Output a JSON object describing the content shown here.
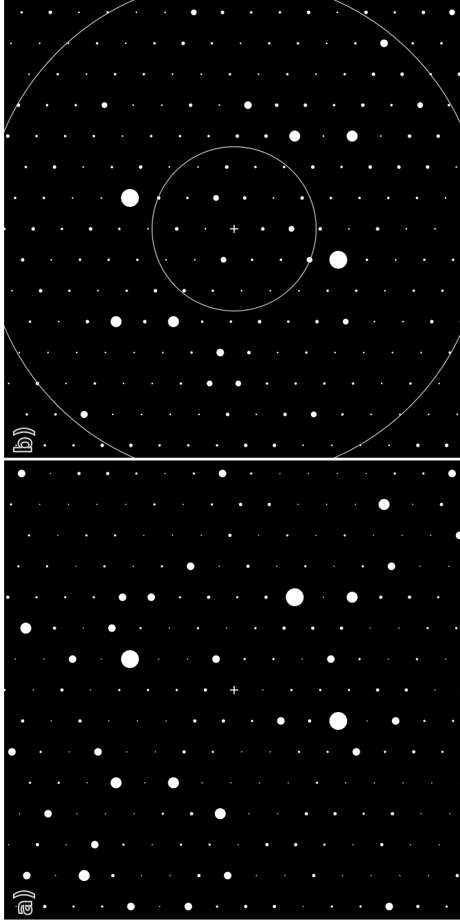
{
  "figure": {
    "panels": [
      {
        "id": "b",
        "label": "b)"
      },
      {
        "id": "a",
        "label": "a)"
      }
    ],
    "colors": {
      "background": "#000000",
      "spot": "#ffffff",
      "ring": "#cfcfcf",
      "separator": "#ffffff"
    },
    "center_marker_icon": "plus-cross",
    "lattice_spacing_units": 1,
    "panel_b": {
      "rings": [
        {
          "name": "inner-ring",
          "radius_spacings": 2.86
        },
        {
          "name": "outer-ring",
          "radius_spacings": 8.7
        }
      ],
      "strong_reflections": [
        {
          "h": -4,
          "k": -1,
          "size": "large"
        },
        {
          "h": 4,
          "k": 1,
          "size": "large"
        },
        {
          "h": 1,
          "k": -3,
          "size": "medium"
        },
        {
          "h": 3,
          "k": -3,
          "size": "medium"
        },
        {
          "h": -1,
          "k": -4,
          "size": "small"
        },
        {
          "h": 3,
          "k": -6,
          "size": "small"
        },
        {
          "h": -3,
          "k": 3,
          "size": "medium"
        },
        {
          "h": -1,
          "k": 3,
          "size": "medium"
        },
        {
          "h": 1,
          "k": 4,
          "size": "small"
        }
      ]
    },
    "panel_a": {
      "strong_reflections": [
        {
          "h": -4,
          "k": -1,
          "size": "large"
        },
        {
          "h": 4,
          "k": 1,
          "size": "large"
        },
        {
          "h": 1,
          "k": -3,
          "size": "large"
        },
        {
          "h": 3,
          "k": -3,
          "size": "medium"
        },
        {
          "h": -3,
          "k": 3,
          "size": "medium"
        },
        {
          "h": -1,
          "k": 3,
          "size": "medium"
        },
        {
          "h": 3,
          "k": -6,
          "size": "medium"
        },
        {
          "h": -3,
          "k": 6,
          "size": "medium"
        },
        {
          "h": -8,
          "k": -2,
          "size": "medium"
        },
        {
          "h": 1,
          "k": 4,
          "size": "medium"
        }
      ]
    }
  }
}
